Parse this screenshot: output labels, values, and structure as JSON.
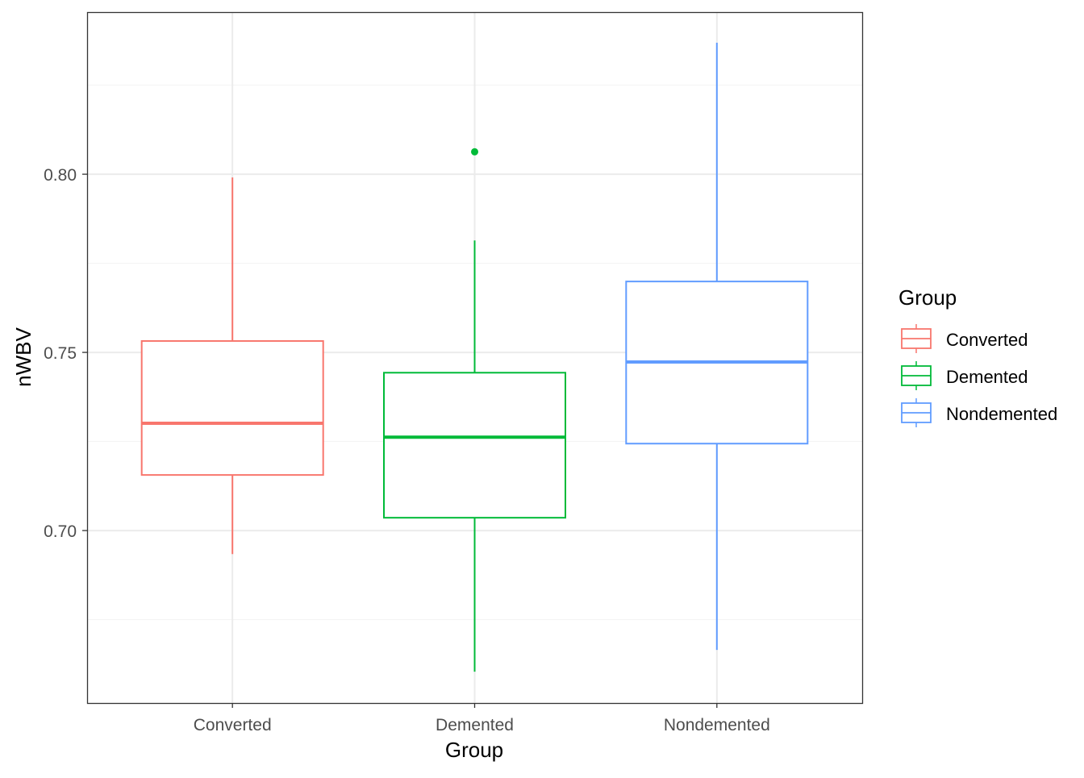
{
  "chart_data": {
    "type": "boxplot",
    "xlabel": "Group",
    "ylabel": "nWBV",
    "ylim": [
      0.6516,
      0.8455
    ],
    "yticks": [
      0.7,
      0.75,
      0.8
    ],
    "ytick_labels": [
      "0.70",
      "0.75",
      "0.80"
    ],
    "categories": [
      "Converted",
      "Demented",
      "Nondemented"
    ],
    "grid": true,
    "legend": {
      "title": "Group",
      "position": "right",
      "entries": [
        "Converted",
        "Demented",
        "Nondemented"
      ]
    },
    "series": [
      {
        "name": "Converted",
        "color": "#F8766D",
        "whisker_low": 0.6934,
        "q1": 0.7156,
        "median": 0.7301,
        "q3": 0.7532,
        "whisker_high": 0.7991,
        "outliers": []
      },
      {
        "name": "Demented",
        "color": "#00BA38",
        "whisker_low": 0.6604,
        "q1": 0.7036,
        "median": 0.7262,
        "q3": 0.7443,
        "whisker_high": 0.7814,
        "outliers": [
          0.8063
        ]
      },
      {
        "name": "Nondemented",
        "color": "#619CFF",
        "whisker_low": 0.6665,
        "q1": 0.7244,
        "median": 0.7473,
        "q3": 0.7699,
        "whisker_high": 0.8369,
        "outliers": []
      }
    ]
  }
}
